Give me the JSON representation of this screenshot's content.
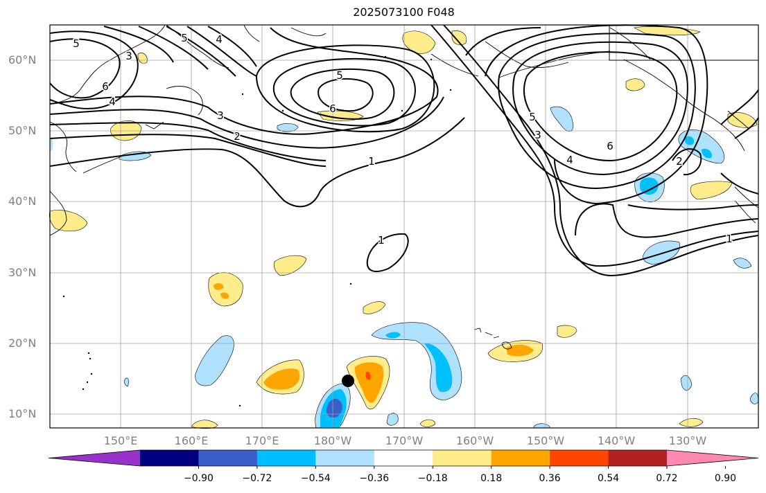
{
  "title": "2025073100 F048",
  "lat_labels": [
    "60°N",
    "50°N",
    "40°N",
    "30°N",
    "20°N",
    "10°N"
  ],
  "lon_labels": [
    "150°E",
    "160°E",
    "170°E",
    "180°W",
    "170°W",
    "160°W",
    "150°W",
    "140°W",
    "130°W"
  ],
  "contour_labels": [
    "5",
    "3",
    "6",
    "4",
    "5",
    "4",
    "5",
    "6",
    "3",
    "2",
    "1",
    "5",
    "3",
    "4",
    "6",
    "2",
    "1",
    "1"
  ],
  "colorbar": {
    "extend": "both",
    "colors": [
      "#9932CC",
      "#000080",
      "#3A5FCD",
      "#00BFFF",
      "#B0E2FF",
      "#FFFFFF",
      "#FFEC8B",
      "#FFA500",
      "#FF4500",
      "#B22222",
      "#FF88B0"
    ],
    "tick_labels": [
      "−0.90",
      "−0.72",
      "−0.54",
      "−0.36",
      "−0.18",
      "0.18",
      "0.36",
      "0.54",
      "0.72",
      "0.90"
    ]
  },
  "map": {
    "land_color": "#ffffff",
    "coast_color": "#000000",
    "grid_color": "#a0a0a0",
    "contour_color": "#000000",
    "marker_color": "#000000"
  }
}
